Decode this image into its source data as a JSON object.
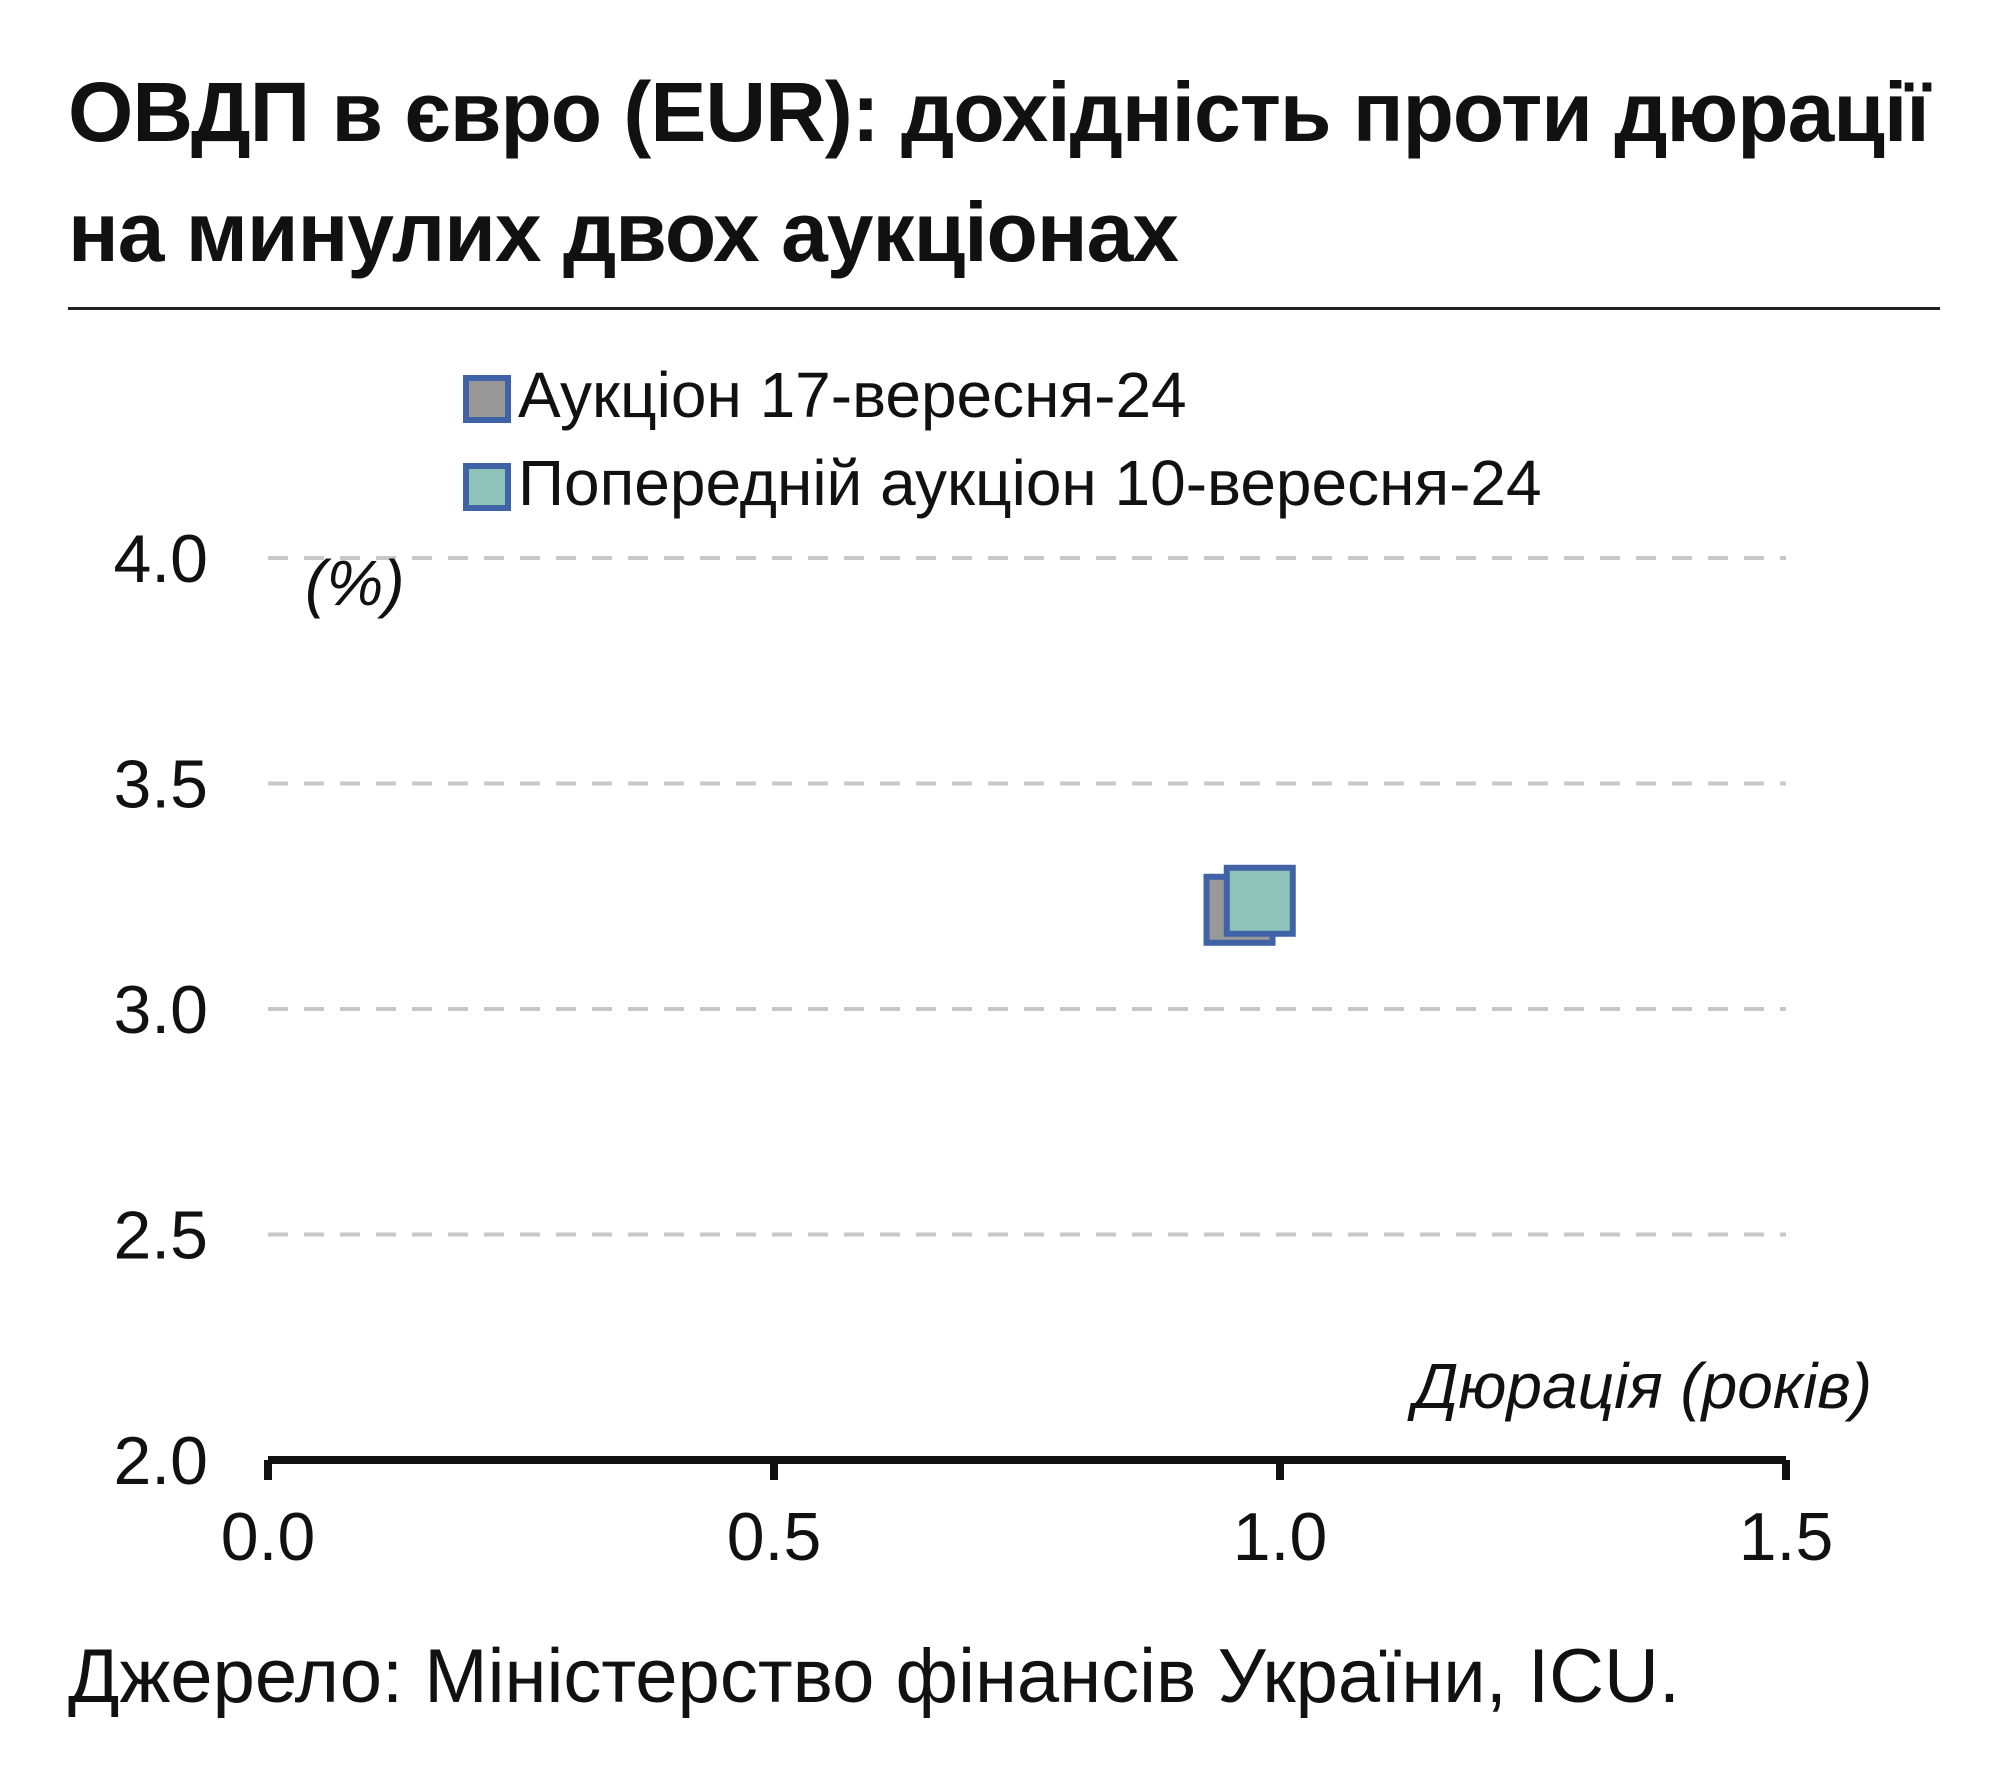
{
  "chart_data": {
    "type": "scatter",
    "title": [
      "ОВДП в євро (EUR): дохідність проти дюрації",
      "на минулих двох аукціонах"
    ],
    "ylabel": "(%)",
    "xlabel": "Дюрація (років)",
    "xlim": [
      0.0,
      1.5
    ],
    "ylim": [
      2.0,
      4.0
    ],
    "x_ticks": [
      "0.0",
      "0.5",
      "1.0",
      "1.5"
    ],
    "y_ticks": [
      "2.0",
      "2.5",
      "3.0",
      "3.5",
      "4.0"
    ],
    "grid": true,
    "legend_position": "top-left",
    "series": [
      {
        "name": "Аукціон 17-вересня-24",
        "fill": "#999999",
        "stroke": "#3f63a6",
        "points": [
          {
            "x": 0.96,
            "y": 3.22
          }
        ]
      },
      {
        "name": "Попередній аукціон 10-вересня-24",
        "fill": "#8dc3b9",
        "stroke": "#3f63a6",
        "points": [
          {
            "x": 0.98,
            "y": 3.24
          }
        ]
      }
    ],
    "source": "Джерело: Міністерство фінансів України, ICU."
  },
  "colors": {
    "grid": "#c8c8c8",
    "axis": "#111111",
    "text": "#111111"
  }
}
